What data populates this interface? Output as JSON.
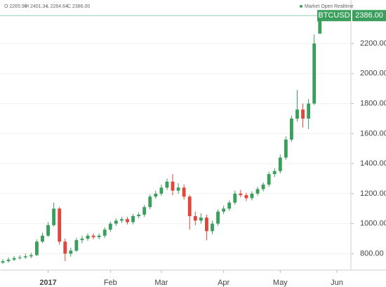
{
  "chart_data": {
    "type": "candlestick",
    "symbol": "BTCUSD",
    "last_price_label": "2386.00",
    "header": [
      "O 2265.90",
      "H 2401.34",
      "L 2264.64",
      "C 2386.00"
    ],
    "status": [
      "Market Open",
      "Realtime"
    ],
    "categories": [
      null,
      null,
      null,
      null,
      null,
      null,
      null,
      null,
      "2017",
      null,
      null,
      null,
      null,
      null,
      null,
      null,
      null,
      null,
      null,
      "Feb",
      null,
      null,
      null,
      null,
      null,
      null,
      null,
      null,
      "Mar",
      null,
      null,
      null,
      null,
      null,
      null,
      null,
      null,
      null,
      null,
      "Apr",
      null,
      null,
      null,
      null,
      null,
      null,
      null,
      null,
      null,
      "May",
      null,
      null,
      null,
      null,
      null,
      null,
      null,
      null,
      null,
      "Jun"
    ],
    "open": [
      740,
      750,
      760,
      770,
      775,
      782,
      790,
      880,
      920,
      990,
      1100,
      880,
      800,
      820,
      890,
      900,
      920,
      910,
      920,
      960,
      1000,
      1020,
      1030,
      1010,
      1050,
      1060,
      1110,
      1180,
      1200,
      1240,
      1280,
      1220,
      1240,
      1180,
      1050,
      1020,
      1040,
      950,
      1000,
      1080,
      1100,
      1140,
      1200,
      1190,
      1170,
      1200,
      1230,
      1260,
      1330,
      1350,
      1440,
      1560,
      1700,
      1760,
      1700,
      1800,
      2265.9,
      null,
      null,
      null
    ],
    "high": [
      765,
      775,
      785,
      790,
      800,
      805,
      895,
      940,
      1010,
      1140,
      1110,
      900,
      840,
      905,
      920,
      935,
      935,
      935,
      975,
      1015,
      1035,
      1045,
      1045,
      1065,
      1075,
      1125,
      1195,
      1220,
      1260,
      1300,
      1330,
      1270,
      1260,
      1190,
      1080,
      1070,
      1060,
      1020,
      1095,
      1120,
      1155,
      1220,
      1225,
      1205,
      1215,
      1245,
      1275,
      1345,
      1370,
      1460,
      1580,
      1720,
      1890,
      1800,
      1830,
      2260,
      2401.34,
      null,
      null,
      null
    ],
    "low": [
      730,
      740,
      750,
      760,
      765,
      770,
      785,
      870,
      910,
      980,
      860,
      750,
      780,
      810,
      870,
      885,
      895,
      895,
      905,
      945,
      985,
      1005,
      995,
      995,
      1035,
      1045,
      1095,
      1165,
      1185,
      1225,
      1190,
      1200,
      1160,
      960,
      990,
      1000,
      890,
      930,
      985,
      1065,
      1085,
      1125,
      1175,
      1150,
      1155,
      1185,
      1215,
      1245,
      1310,
      1335,
      1425,
      1545,
      1680,
      1640,
      1630,
      1790,
      2264.64,
      null,
      null,
      null
    ],
    "close": [
      750,
      760,
      770,
      775,
      782,
      790,
      880,
      920,
      990,
      1100,
      880,
      800,
      820,
      890,
      900,
      920,
      910,
      920,
      960,
      1000,
      1020,
      1030,
      1010,
      1050,
      1060,
      1110,
      1180,
      1200,
      1240,
      1280,
      1220,
      1240,
      1180,
      1050,
      1020,
      1040,
      950,
      1000,
      1080,
      1100,
      1140,
      1200,
      1190,
      1170,
      1200,
      1230,
      1260,
      1330,
      1350,
      1440,
      1560,
      1700,
      1760,
      1700,
      1800,
      2200,
      2386,
      null,
      null,
      null
    ],
    "up_color": "#3a9e5c",
    "down_color": "#e0463a",
    "ylim": [
      690,
      2490
    ],
    "yticks": [
      {
        "value": 800,
        "label": "800.00"
      },
      {
        "value": 1000,
        "label": "1000.00"
      },
      {
        "value": 1200,
        "label": "1200.00"
      },
      {
        "value": 1400,
        "label": "1400.00"
      },
      {
        "value": 1600,
        "label": "1600.00"
      },
      {
        "value": 1800,
        "label": "1800.00"
      },
      {
        "value": 2000,
        "label": "2000.00"
      },
      {
        "value": 2200,
        "label": "2200.00"
      }
    ],
    "grid": true
  }
}
